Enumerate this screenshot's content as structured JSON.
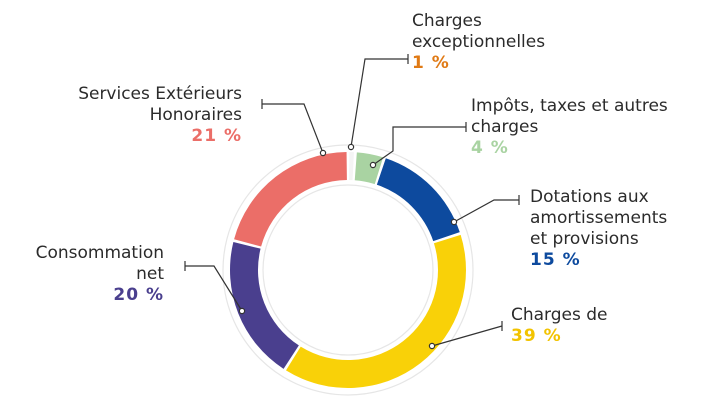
{
  "colors": {
    "background": "#ffffff",
    "ring_outline": "#e6e6e6",
    "leader_line": "#333333",
    "text": "#2b2b2b"
  },
  "chart_data": {
    "type": "pie",
    "style": "donut",
    "title": "",
    "segments": [
      {
        "key": "exceptionnelles",
        "label_lines": [
          "Charges",
          "exceptionnelles"
        ],
        "value": 1,
        "value_label": "1 %",
        "color": "#f4f4f4",
        "label_color": "#e07a15"
      },
      {
        "key": "impots",
        "label_lines": [
          "Impôts, taxes et autres",
          "charges"
        ],
        "value": 4,
        "value_label": "4 %",
        "color": "#a9d3a2",
        "label_color": "#a9d3a2"
      },
      {
        "key": "dotations",
        "label_lines": [
          "Dotations aux",
          "amortissements",
          "et provisions"
        ],
        "value": 15,
        "value_label": "15 %",
        "color": "#0d4a9e",
        "label_color": "#0d4a9e"
      },
      {
        "key": "charges_de",
        "label_lines": [
          "Charges de"
        ],
        "value": 39,
        "value_label": "39 %",
        "color": "#f9d108",
        "label_color": "#f2c300"
      },
      {
        "key": "consommation",
        "label_lines": [
          "Consommation",
          "net"
        ],
        "value": 20,
        "value_label": "20 %",
        "color": "#4a3f8e",
        "label_color": "#4a3f8e"
      },
      {
        "key": "services",
        "label_lines": [
          "Services Extérieurs",
          "Honoraires"
        ],
        "value": 21,
        "value_label": "21 %",
        "color": "#eb6e68",
        "label_color": "#eb6e68"
      }
    ]
  }
}
